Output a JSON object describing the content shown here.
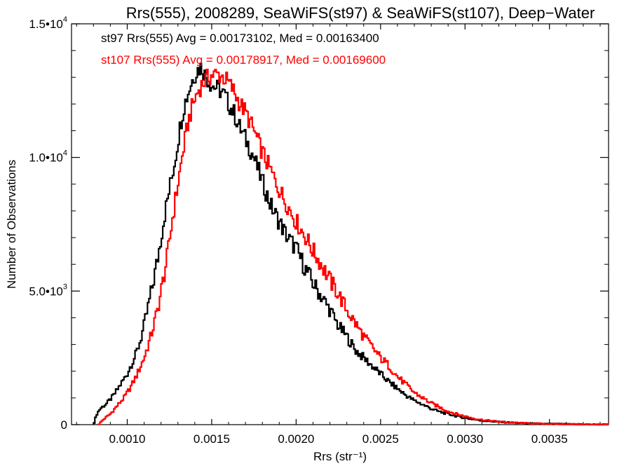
{
  "chart_data": {
    "type": "line",
    "style": "step-histogram",
    "title": "Rrs(555), 2008289, SeaWiFS(st97) & SeaWiFS(st107), Deep−Water",
    "xlabel": "Rrs (str⁻¹)",
    "ylabel": "Number of Observations",
    "xlim": [
      0.00067,
      0.00385
    ],
    "ylim": [
      0,
      15000
    ],
    "x_ticks": [
      {
        "value": 0.001,
        "label": "0.0010"
      },
      {
        "value": 0.0015,
        "label": "0.0015"
      },
      {
        "value": 0.002,
        "label": "0.0020"
      },
      {
        "value": 0.0025,
        "label": "0.0025"
      },
      {
        "value": 0.003,
        "label": "0.0030"
      },
      {
        "value": 0.0035,
        "label": "0.0035"
      }
    ],
    "y_ticks": [
      {
        "value": 0,
        "mantissa": "0",
        "exponent": ""
      },
      {
        "value": 5000,
        "mantissa": "5.0•10",
        "exponent": "3"
      },
      {
        "value": 10000,
        "mantissa": "1.0•10",
        "exponent": "4"
      },
      {
        "value": 15000,
        "mantissa": "1.5•10",
        "exponent": "4"
      }
    ],
    "grid": false,
    "legend_position": "top-left",
    "series": [
      {
        "key": "st97",
        "legend": "st97 Rrs(555) Avg = 0.00173102, Med = 0.00163400",
        "color": "#000000",
        "x": [
          0.0008,
          0.00082,
          0.00084,
          0.00088,
          0.00092,
          0.00095,
          0.00098,
          0.001,
          0.00102,
          0.00105,
          0.00108,
          0.0011,
          0.00112,
          0.00115,
          0.00118,
          0.0012,
          0.00122,
          0.00125,
          0.00128,
          0.0013,
          0.00132,
          0.00134,
          0.00136,
          0.00138,
          0.0014,
          0.00142,
          0.00144,
          0.00146,
          0.00148,
          0.0015,
          0.00152,
          0.00155,
          0.00158,
          0.0016,
          0.00163,
          0.00166,
          0.0017,
          0.00175,
          0.0018,
          0.00185,
          0.0019,
          0.00195,
          0.002,
          0.00205,
          0.0021,
          0.00215,
          0.0022,
          0.00225,
          0.0023,
          0.00235,
          0.0024,
          0.00245,
          0.0025,
          0.00255,
          0.0026,
          0.00265,
          0.0027,
          0.00275,
          0.0028,
          0.00285,
          0.0029,
          0.00295,
          0.003,
          0.00305,
          0.0031,
          0.0032,
          0.0033,
          0.0034,
          0.0035,
          0.0036,
          0.0037,
          0.0038,
          0.00385
        ],
        "y": [
          0,
          400,
          600,
          800,
          1100,
          1400,
          1700,
          1900,
          2200,
          2600,
          3200,
          3700,
          4300,
          5200,
          6200,
          7000,
          7800,
          8800,
          9800,
          10600,
          11400,
          12000,
          12400,
          12800,
          13100,
          13300,
          13400,
          13100,
          12900,
          12700,
          12650,
          12500,
          12300,
          12000,
          11700,
          11200,
          10700,
          10000,
          9100,
          8200,
          7600,
          7000,
          6600,
          5900,
          5300,
          4800,
          4300,
          3700,
          3300,
          2800,
          2500,
          2200,
          1900,
          1600,
          1350,
          1100,
          900,
          750,
          600,
          480,
          400,
          320,
          250,
          200,
          150,
          100,
          70,
          40,
          30,
          20,
          10,
          5,
          0
        ]
      },
      {
        "key": "st107",
        "legend": "st107 Rrs(555) Avg = 0.00178917, Med = 0.00169600",
        "color": "#ff0000",
        "x": [
          0.00083,
          0.00086,
          0.0009,
          0.00094,
          0.00098,
          0.00102,
          0.00106,
          0.0011,
          0.00114,
          0.00118,
          0.00121,
          0.00124,
          0.00127,
          0.0013,
          0.00133,
          0.00136,
          0.00139,
          0.00142,
          0.00145,
          0.00148,
          0.00151,
          0.00154,
          0.00157,
          0.0016,
          0.00163,
          0.00166,
          0.0017,
          0.00175,
          0.0018,
          0.00185,
          0.0019,
          0.00195,
          0.002,
          0.00205,
          0.0021,
          0.00215,
          0.0022,
          0.00225,
          0.0023,
          0.00235,
          0.0024,
          0.00245,
          0.0025,
          0.00255,
          0.0026,
          0.00265,
          0.0027,
          0.00275,
          0.0028,
          0.00285,
          0.0029,
          0.00295,
          0.003,
          0.00305,
          0.0031,
          0.0032,
          0.0033,
          0.0034,
          0.0035,
          0.0036,
          0.0037,
          0.0038,
          0.00385
        ],
        "y": [
          0,
          200,
          400,
          700,
          1000,
          1400,
          1900,
          2500,
          3300,
          4300,
          5300,
          6400,
          7800,
          9000,
          10200,
          11300,
          12000,
          12500,
          12800,
          13000,
          13100,
          13100,
          13000,
          12800,
          12500,
          12100,
          11700,
          11000,
          10200,
          9500,
          8800,
          8200,
          7600,
          7100,
          6500,
          6000,
          5400,
          4900,
          4300,
          3800,
          3300,
          2900,
          2500,
          2200,
          1800,
          1500,
          1200,
          1000,
          800,
          650,
          500,
          400,
          310,
          240,
          180,
          110,
          70,
          40,
          30,
          20,
          10,
          5,
          0
        ]
      }
    ]
  }
}
